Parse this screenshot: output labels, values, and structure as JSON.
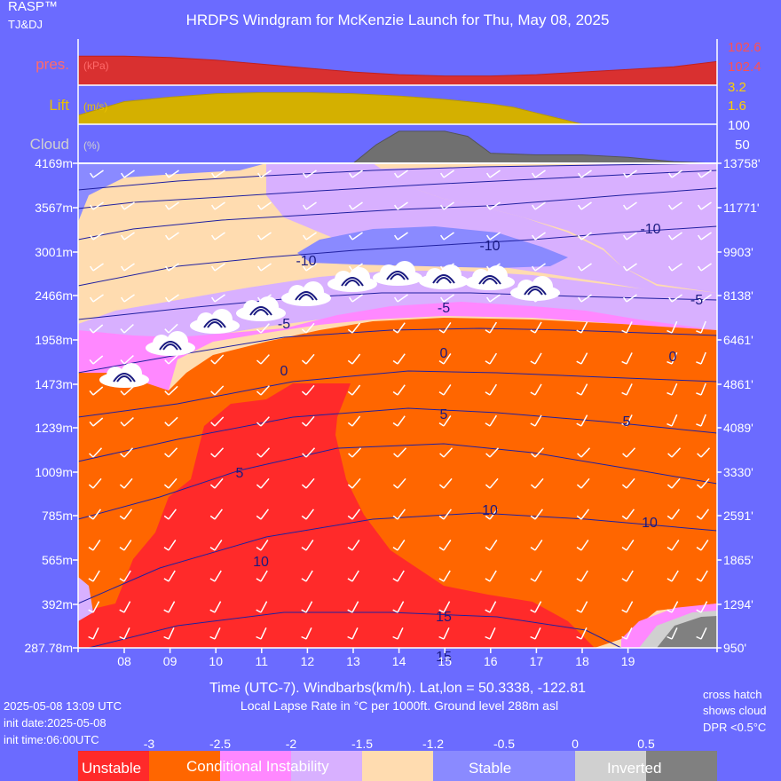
{
  "header": {
    "brand": "RASP™",
    "brand_sub": "TJ&DJ",
    "title": "HRDPS Windgram for McKenzie Launch for Thu, May 08, 2025"
  },
  "footer": {
    "time_axis_label": "Time (UTC-7). Windbarbs(km/h). Lat,lon = 50.3338, -122.81",
    "lapse_label": "Local Lapse Rate in °C per 1000ft.   Ground level 288m asl",
    "run_time": "2025-05-08 13:09 UTC",
    "init_date": "init date:2025-05-08",
    "init_time": "init time:06:00UTC",
    "hatch_note_1": "cross hatch",
    "hatch_note_2": "shows cloud",
    "hatch_note_3": "DPR <0.5°C"
  },
  "colors": {
    "background": "#6b6bff",
    "unstable": "#ff2a2a",
    "conditional": "#ff6600",
    "pink": "#ff88ff",
    "lavender": "#d8b0ff",
    "peach": "#ffdcb0",
    "stable": "#8a8aff",
    "inverted_light": "#d0d0d0",
    "inverted_dark": "#808080",
    "pressure": "#d93030",
    "lift": "#d4b000",
    "cloud": "#707070"
  },
  "chart_data": [
    {
      "type": "area",
      "name_label": "pres.",
      "unit_label": "(kPa)",
      "ytick_labels": [
        "102.6",
        "102.4"
      ],
      "ylim": [
        102.3,
        102.65
      ],
      "x": [
        7,
        8,
        9,
        10,
        11,
        12,
        13,
        14,
        15,
        16,
        17,
        18,
        19,
        20,
        21
      ],
      "values": [
        102.52,
        102.52,
        102.51,
        102.49,
        102.46,
        102.43,
        102.4,
        102.38,
        102.37,
        102.37,
        102.38,
        102.4,
        102.42,
        102.44,
        102.48
      ]
    },
    {
      "type": "area",
      "name_label": "Lift",
      "unit_label": "(m/s)",
      "ytick_labels": [
        "3.2",
        "1.6"
      ],
      "ylim": [
        0,
        3.3
      ],
      "x": [
        7,
        7.5,
        8,
        9,
        10,
        11,
        12,
        13,
        14,
        15,
        16,
        16.5,
        17,
        17.5,
        18
      ],
      "values": [
        0.8,
        1.4,
        2.0,
        2.4,
        2.7,
        2.8,
        2.8,
        2.7,
        2.5,
        2.2,
        1.8,
        1.5,
        1.0,
        0.5,
        0
      ]
    },
    {
      "type": "area",
      "name_label": "Cloud",
      "unit_label": "(%)",
      "ytick_labels": [
        "100",
        "50"
      ],
      "ylim": [
        0,
        100
      ],
      "x": [
        7,
        12,
        13,
        13.5,
        14,
        15,
        15.5,
        16,
        17,
        18,
        19,
        20,
        21
      ],
      "values": [
        0,
        0,
        0,
        55,
        95,
        95,
        80,
        30,
        25,
        25,
        18,
        5,
        0
      ]
    },
    {
      "type": "heatmap",
      "x": [
        8,
        9,
        10,
        11,
        12,
        13,
        14,
        15,
        16,
        17,
        18,
        19
      ],
      "xtick_labels": [
        "08",
        "09",
        "10",
        "11",
        "12",
        "13",
        "14",
        "15",
        "16",
        "17",
        "18",
        "19"
      ],
      "ytick_labels_left": [
        "4169m",
        "3567m",
        "3001m",
        "2466m",
        "1958m",
        "1473m",
        "1239m",
        "1009m",
        "785m",
        "565m",
        "392m",
        "287.78m"
      ],
      "ytick_labels_right": [
        "13758'",
        "11771'",
        "9903'",
        "8138'",
        "6461'",
        "4861'",
        "4089'",
        "3330'",
        "2591'",
        "1865'",
        "1294'",
        "950'"
      ],
      "contour_labels": [
        "-10",
        "-10",
        "-10",
        "-5",
        "-5",
        "-5",
        "0",
        "0",
        "0",
        "5",
        "5",
        "5",
        "10",
        "10",
        "10",
        "15",
        "15"
      ],
      "legend_values": [
        "-3",
        "-2.5",
        "-2",
        "-1.5",
        "-1.2",
        "-0.5",
        "0",
        "0.5"
      ],
      "legend_labels": [
        "Unstable",
        "Conditional Instability",
        "Stable",
        "Inverted"
      ]
    }
  ]
}
